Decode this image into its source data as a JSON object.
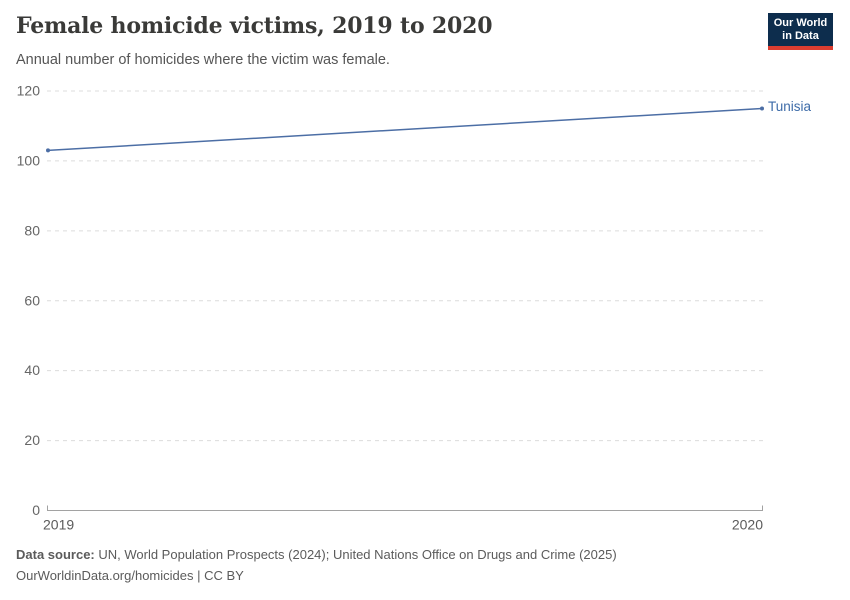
{
  "header": {
    "title": "Female homicide victims, 2019 to 2020",
    "subtitle": "Annual number of homicides where the victim was female.",
    "logo": {
      "line1": "Our World",
      "line2": "in Data",
      "bg_color": "#0d2d4d",
      "accent_color": "#db3d30"
    }
  },
  "chart_data": {
    "type": "line",
    "title": "Female homicide victims, 2019 to 2020",
    "subtitle": "Annual number of homicides where the victim was female.",
    "x": [
      2019,
      2020
    ],
    "xlabel": "",
    "ylabel": "",
    "series": [
      {
        "name": "Tunisia",
        "values": [
          103,
          115
        ],
        "color": "#4c6ea5",
        "label_color": "#3d6ba8"
      }
    ],
    "ylim": [
      0,
      120
    ],
    "yticks": [
      0,
      20,
      40,
      60,
      80,
      100,
      120
    ],
    "xticks": [
      2019,
      2020
    ],
    "grid": "horizontal-dashed",
    "grid_color": "#dcdcdc",
    "axis_color": "#a2a2a2",
    "tick_label_color": "#666666",
    "legend": "inline-end-label"
  },
  "footer": {
    "source_label": "Data source:",
    "source_text": " UN, World Population Prospects (2024); United Nations Office on Drugs and Crime (2025)",
    "license_line": "OurWorldinData.org/homicides | CC BY"
  }
}
